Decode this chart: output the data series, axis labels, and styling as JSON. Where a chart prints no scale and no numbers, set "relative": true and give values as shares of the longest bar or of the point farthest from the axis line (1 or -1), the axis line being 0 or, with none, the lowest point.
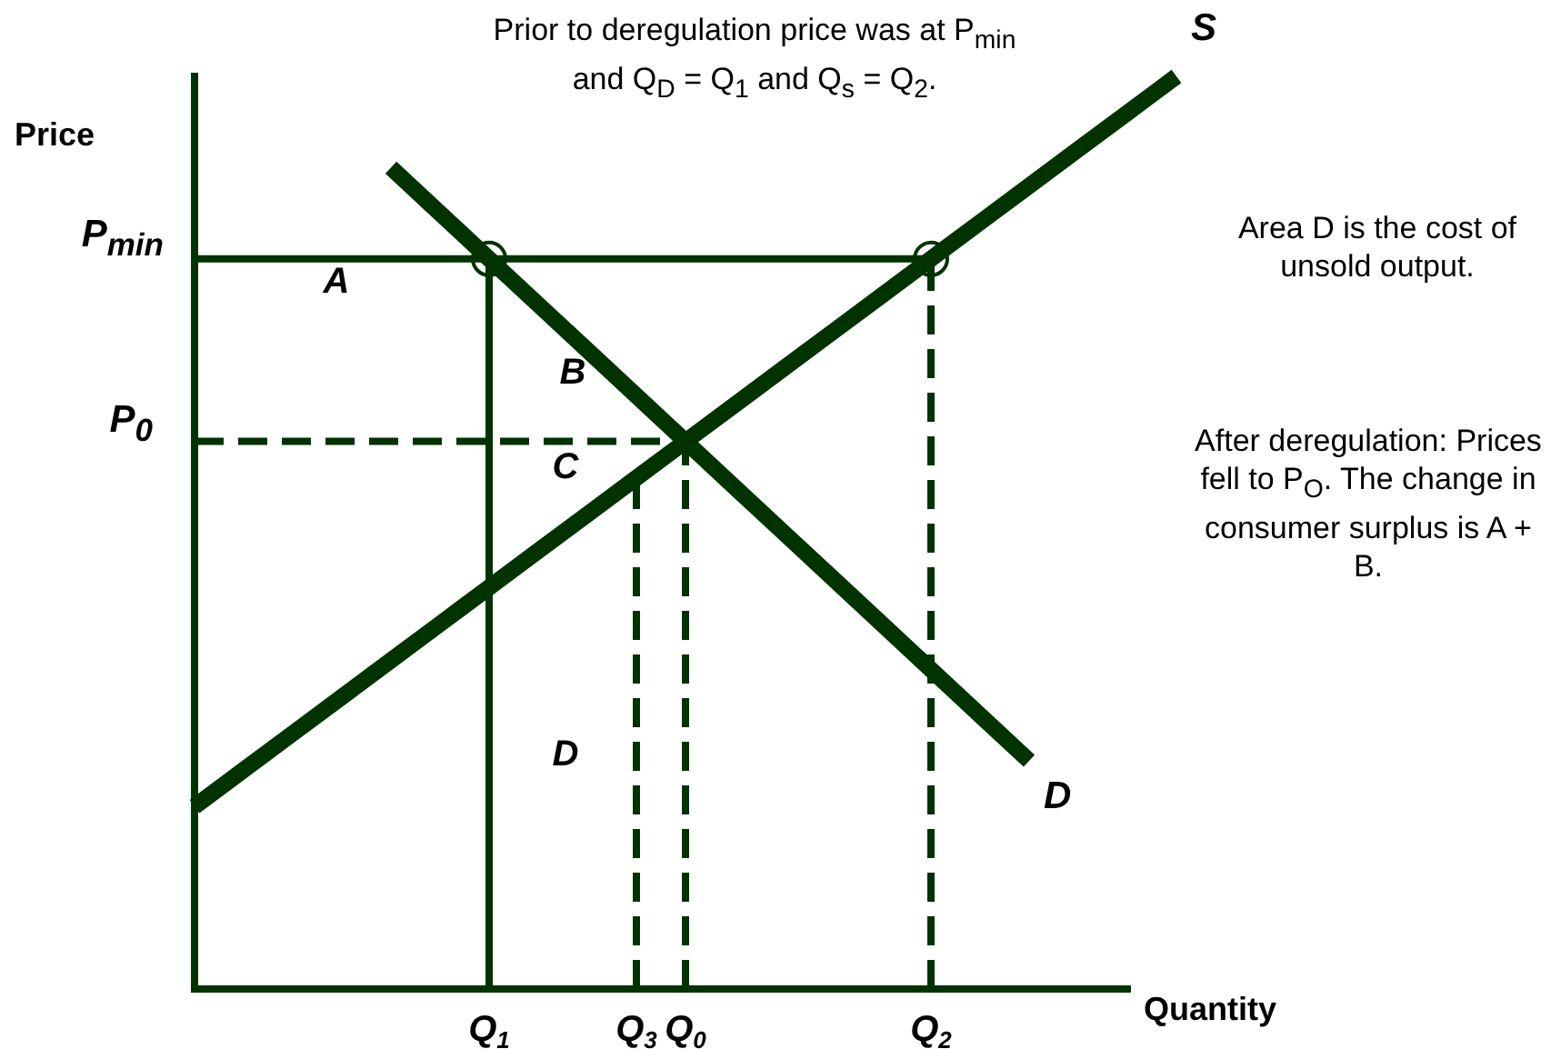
{
  "chart_data": {
    "type": "line",
    "relative": true,
    "xlabel": "Quantity",
    "ylabel": "Price",
    "legend": false,
    "marker": "none",
    "line_style": "solid",
    "categories": [
      null,
      null,
      null,
      null,
      null,
      null,
      "Q$_{1}$",
      null,
      null,
      "Q$_{3}$",
      "Q$_{0}$",
      null,
      null,
      null,
      null,
      "Q$_{2}$",
      null,
      null,
      null,
      null,
      null
    ],
    "series": [
      {
        "name": "S",
        "color": "#003300",
        "values": [
          0.2,
          0.24,
          0.28,
          0.32,
          0.36,
          0.4,
          0.44,
          0.48,
          0.52,
          0.56,
          0.6,
          0.64,
          0.68,
          0.72,
          0.76,
          0.8,
          0.84,
          0.88,
          0.92,
          0.96,
          1
        ]
      },
      {
        "name": "D",
        "color": "#003300",
        "values": [
          null,
          null,
          null,
          null,
          0.9,
          0.85,
          0.8,
          0.75,
          0.7,
          0.65,
          0.6,
          0.55,
          0.5,
          0.45,
          0.4,
          0.35,
          0.3,
          0.25,
          null,
          null,
          null
        ]
      },
      {
        "color": "#003300",
        "values": [
          0.8,
          0.8,
          0.8,
          0.8,
          0.8,
          0.8,
          0.8,
          0.8,
          0.8,
          0.8,
          0.8,
          0.8,
          0.8,
          0.8,
          0.8,
          0.8,
          null,
          null,
          null,
          null,
          null
        ]
      },
      {
        "color": "#003300",
        "line_style": "dashed",
        "values": [
          0.6,
          0.6,
          0.6,
          0.6,
          0.6,
          0.6,
          0.6,
          0.6,
          0.6,
          0.6,
          0.6,
          null,
          null,
          null,
          null,
          null,
          null,
          null,
          null,
          null,
          null
        ]
      },
      {
        "color": "#003300",
        "x": [
          "Q$_{1}$",
          "Q$_{1}$"
        ],
        "values": [
          0,
          0.8
        ]
      },
      {
        "color": "#003300",
        "line_style": "dashed",
        "x": [
          "Q$_{3}$",
          "Q$_{3}$"
        ],
        "values": [
          0,
          0.56
        ]
      },
      {
        "color": "#003300",
        "line_style": "dashed",
        "x": [
          "Q$_{0}$",
          "Q$_{0}$"
        ],
        "values": [
          0,
          0.6
        ]
      },
      {
        "color": "#003300",
        "line_style": "dashed",
        "x": [
          "Q$_{2}$",
          "Q$_{2}$"
        ],
        "values": [
          0,
          0.8
        ]
      },
      {
        "type": "scatter",
        "color": "#003300",
        "marker": "circle",
        "x": [
          "Q$_{1}$",
          "Q$_{2}$"
        ],
        "values": [
          0.8,
          0.8
        ]
      }
    ],
    "annotations": [
      "Prior to deregulation price was at P$_{min}$ and Q$_{D}$ = Q$_{1}$ and Q$_{s}$ = Q$_{2}$.",
      "Area D is the cost of unsold output.",
      "After deregulation: Prices fell to P$_{O}$. The change in consumer surplus is A + B.",
      "A",
      "B",
      "C",
      "D",
      "P$_{min}$",
      "P$_{0}$"
    ]
  }
}
